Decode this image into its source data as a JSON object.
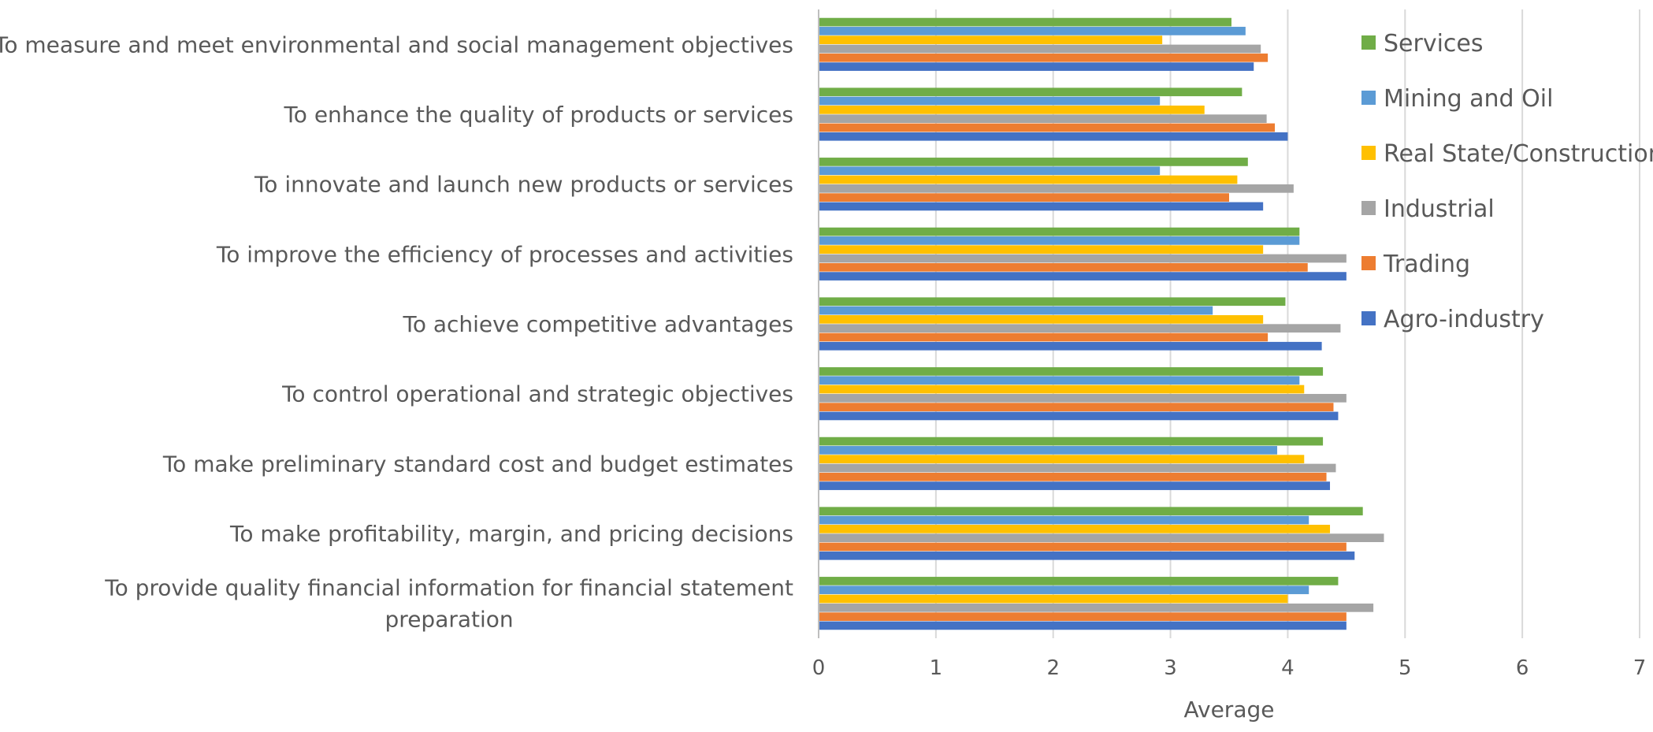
{
  "chart_data": {
    "type": "bar",
    "orientation": "horizontal",
    "title": "",
    "xlabel": "Average",
    "ylabel": "",
    "xlim": [
      0,
      7
    ],
    "x_ticks": [
      "0",
      "1",
      "2",
      "3",
      "4",
      "5",
      "6",
      "7"
    ],
    "grid": "vertical",
    "legend_position": "right",
    "categories": [
      [
        "To measure and meet environmental and social management objectives"
      ],
      [
        "To enhance the quality of products or services"
      ],
      [
        "To innovate and launch new products or services"
      ],
      [
        "To improve the efficiency of processes and activities"
      ],
      [
        "To achieve competitive advantages"
      ],
      [
        "To control operational and strategic objectives"
      ],
      [
        "To make preliminary standard cost and budget estimates"
      ],
      [
        "To make profitability, margin, and pricing decisions"
      ],
      [
        "To provide quality financial information for financial statement",
        "preparation"
      ]
    ],
    "series": [
      {
        "name": "Services",
        "color": "#70AD47",
        "values": [
          3.52,
          3.61,
          3.66,
          4.1,
          3.98,
          4.3,
          4.3,
          4.64,
          4.43
        ]
      },
      {
        "name": "Mining and Oil",
        "color": "#5B9BD5",
        "values": [
          3.64,
          2.91,
          2.91,
          4.1,
          3.36,
          4.1,
          3.91,
          4.18,
          4.18
        ]
      },
      {
        "name": "Real State/Construction",
        "color": "#FFC000",
        "values": [
          2.93,
          3.29,
          3.57,
          3.79,
          3.79,
          4.14,
          4.14,
          4.36,
          4.0
        ]
      },
      {
        "name": "Industrial",
        "color": "#A5A5A5",
        "values": [
          3.77,
          3.82,
          4.05,
          4.5,
          4.45,
          4.5,
          4.41,
          4.82,
          4.73
        ]
      },
      {
        "name": "Trading",
        "color": "#ED7D31",
        "values": [
          3.83,
          3.89,
          3.5,
          4.17,
          3.83,
          4.39,
          4.33,
          4.5,
          4.5
        ]
      },
      {
        "name": "Agro-industry",
        "color": "#4472C4",
        "values": [
          3.71,
          4.0,
          3.79,
          4.5,
          4.29,
          4.43,
          4.36,
          4.57,
          4.5
        ]
      }
    ]
  }
}
